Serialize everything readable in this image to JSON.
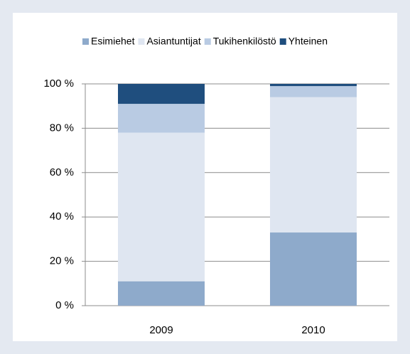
{
  "chart_data": {
    "type": "stacked_bar",
    "categories": [
      "2009",
      "2010"
    ],
    "series": [
      {
        "name": "Esimiehet",
        "color": "#8eaacb",
        "values": [
          11,
          33
        ]
      },
      {
        "name": "Asiantuntijat",
        "color": "#dfe6f1",
        "values": [
          67,
          61
        ]
      },
      {
        "name": "Tukihenkilöstö",
        "color": "#b9cbe3",
        "values": [
          13,
          5
        ]
      },
      {
        "name": "Yhteinen",
        "color": "#1f4e7e",
        "values": [
          9,
          1
        ]
      }
    ],
    "ylim": [
      0,
      100
    ],
    "yticks": [
      {
        "value": 0,
        "label": "0 %"
      },
      {
        "value": 20,
        "label": "20 %"
      },
      {
        "value": 40,
        "label": "40 %"
      },
      {
        "value": 60,
        "label": "60 %"
      },
      {
        "value": 80,
        "label": "80 %"
      },
      {
        "value": 100,
        "label": "100 %"
      }
    ],
    "grid": true,
    "legend": "top"
  }
}
